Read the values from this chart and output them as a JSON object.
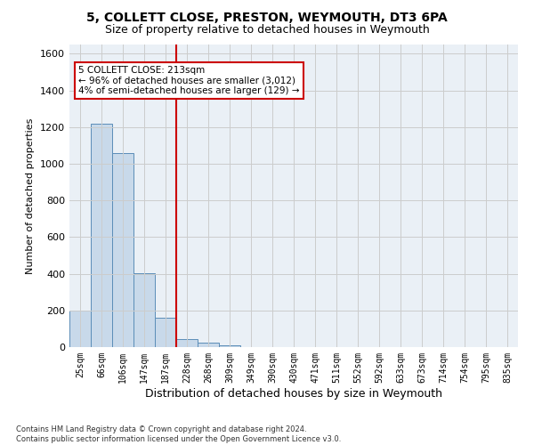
{
  "title": "5, COLLETT CLOSE, PRESTON, WEYMOUTH, DT3 6PA",
  "subtitle": "Size of property relative to detached houses in Weymouth",
  "xlabel": "Distribution of detached houses by size in Weymouth",
  "ylabel": "Number of detached properties",
  "categories": [
    "25sqm",
    "66sqm",
    "106sqm",
    "147sqm",
    "187sqm",
    "228sqm",
    "268sqm",
    "309sqm",
    "349sqm",
    "390sqm",
    "430sqm",
    "471sqm",
    "511sqm",
    "552sqm",
    "592sqm",
    "633sqm",
    "673sqm",
    "714sqm",
    "754sqm",
    "795sqm",
    "835sqm"
  ],
  "values": [
    200,
    1220,
    1060,
    405,
    160,
    45,
    22,
    12,
    0,
    0,
    0,
    0,
    0,
    0,
    0,
    0,
    0,
    0,
    0,
    0,
    0
  ],
  "bar_color": "#c8d9ea",
  "bar_edge_color": "#5b8db8",
  "vline_x": 4.5,
  "vline_color": "#cc0000",
  "annotation_text": "5 COLLETT CLOSE: 213sqm\n← 96% of detached houses are smaller (3,012)\n4% of semi-detached houses are larger (129) →",
  "annotation_box_color": "#ffffff",
  "annotation_box_edge": "#cc0000",
  "ylim": [
    0,
    1650
  ],
  "yticks": [
    0,
    200,
    400,
    600,
    800,
    1000,
    1200,
    1400,
    1600
  ],
  "grid_color": "#cccccc",
  "plot_bg_color": "#eaf0f6",
  "footer": "Contains HM Land Registry data © Crown copyright and database right 2024.\nContains public sector information licensed under the Open Government Licence v3.0.",
  "title_fontsize": 10,
  "subtitle_fontsize": 9,
  "annotation_fontsize": 7.5,
  "ylabel_fontsize": 8,
  "xlabel_fontsize": 9,
  "footer_fontsize": 6,
  "tick_fontsize": 7
}
